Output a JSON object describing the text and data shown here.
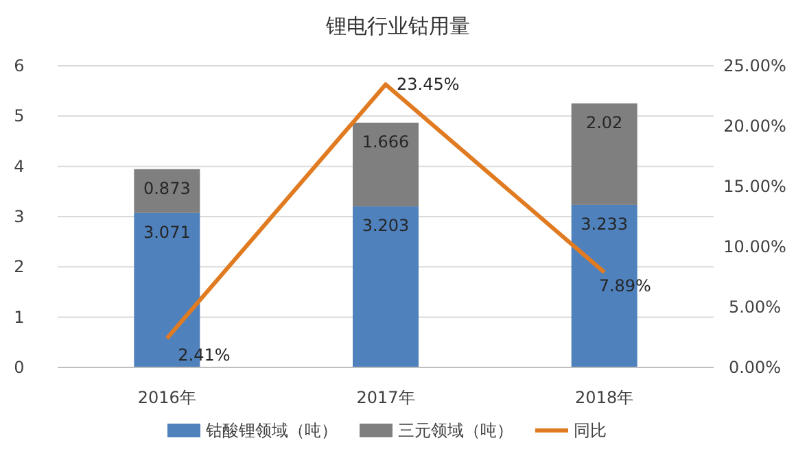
{
  "chart_data": {
    "type": "bar",
    "title": "锂电行业钴用量",
    "stacked": true,
    "categories": [
      "2016年",
      "2017年",
      "2018年"
    ],
    "series": [
      {
        "name": "钴酸锂领域（吨）",
        "color": "#4f81bd",
        "values": [
          3.071,
          3.203,
          3.233
        ],
        "value_labels": [
          "3.071",
          "3.203",
          "3.233"
        ]
      },
      {
        "name": "三元领域（吨）",
        "color": "#7f7f7f",
        "values": [
          0.873,
          1.666,
          2.02
        ],
        "value_labels": [
          "0.873",
          "1.666",
          "2.02"
        ]
      },
      {
        "name": "同比",
        "type": "line",
        "axis": "y2",
        "color": "#e07b22",
        "values": [
          2.41,
          23.45,
          7.89
        ],
        "value_labels": [
          "2.41%",
          "23.45%",
          "7.89%"
        ]
      }
    ],
    "ylim": [
      0,
      6
    ],
    "yticks": [
      0,
      1,
      2,
      3,
      4,
      5,
      6
    ],
    "y2lim": [
      0,
      25
    ],
    "y2ticks": [
      {
        "value": 0,
        "label": "0.00%"
      },
      {
        "value": 5,
        "label": "5.00%"
      },
      {
        "value": 10,
        "label": "10.00%"
      },
      {
        "value": 15,
        "label": "15.00%"
      },
      {
        "value": 20,
        "label": "20.00%"
      },
      {
        "value": 25,
        "label": "25.00%"
      }
    ],
    "grid": "y",
    "legend": "bottom",
    "marker": "none",
    "line_style": "solid"
  }
}
